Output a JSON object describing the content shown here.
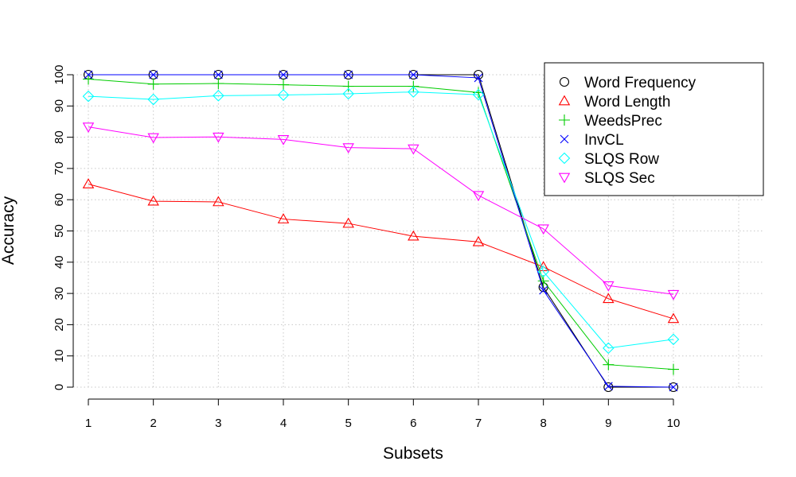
{
  "chart_data": {
    "type": "line",
    "xlabel": "Subsets",
    "ylabel": "Accuracy",
    "x": [
      1,
      2,
      3,
      4,
      5,
      6,
      7,
      8,
      9,
      10
    ],
    "xticks": [
      "1",
      "2",
      "3",
      "4",
      "5",
      "6",
      "7",
      "8",
      "9",
      "10"
    ],
    "yticks": [
      "0",
      "10",
      "20",
      "30",
      "40",
      "50",
      "60",
      "70",
      "80",
      "90",
      "100"
    ],
    "xlim": [
      1,
      10
    ],
    "ylim": [
      0,
      100
    ],
    "grid": true,
    "legend_position": "top-right",
    "series": [
      {
        "name": "Word Frequency",
        "color": "#000000",
        "marker": "circle",
        "values": [
          100,
          100,
          100,
          100,
          100,
          100,
          100,
          32,
          0,
          0
        ]
      },
      {
        "name": "Word Length",
        "color": "#ff0000",
        "marker": "triangle-up",
        "values": [
          65,
          59.5,
          59.3,
          53.8,
          52.4,
          48.3,
          46.5,
          38.5,
          28.3,
          21.9
        ]
      },
      {
        "name": "WeedsPrec",
        "color": "#00cc00",
        "marker": "plus",
        "values": [
          98.6,
          97,
          97.2,
          96.8,
          96.3,
          96.3,
          94.3,
          34,
          7.2,
          5.7
        ]
      },
      {
        "name": "InvCL",
        "color": "#0000ff",
        "marker": "x",
        "values": [
          100,
          100,
          100,
          100,
          100,
          100,
          99,
          31,
          0.3,
          0
        ]
      },
      {
        "name": "SLQS Row",
        "color": "#00ffff",
        "marker": "diamond",
        "values": [
          93.1,
          92.1,
          93.3,
          93.5,
          93.9,
          94.5,
          93.6,
          37,
          12.5,
          15.3
        ]
      },
      {
        "name": "SLQS Sec",
        "color": "#ff00ff",
        "marker": "triangle-down",
        "values": [
          83.3,
          79.9,
          80.1,
          79.3,
          76.7,
          76.3,
          61.4,
          50.7,
          32.5,
          29.7
        ]
      }
    ]
  }
}
